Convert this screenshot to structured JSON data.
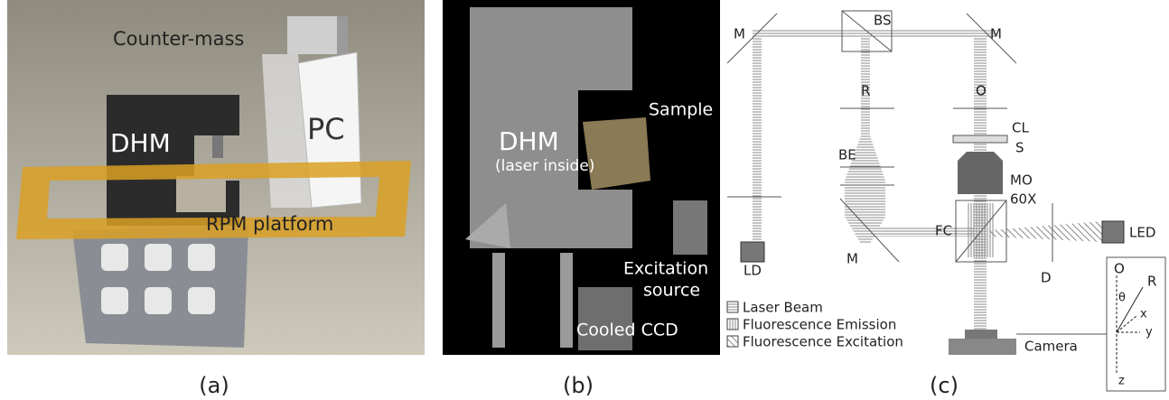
{
  "panels": [
    {
      "caption": "(a)",
      "labels": [
        "Counter-mass",
        "DHM",
        "PC",
        "RPM platform"
      ]
    },
    {
      "caption": "(b)",
      "labels": [
        "DHM",
        "(laser inside)",
        "Sample",
        "Excitation",
        "source",
        "Cooled CCD"
      ]
    },
    {
      "caption": "(c)",
      "labels": [
        "M",
        "BS",
        "M",
        "R",
        "O",
        "CL",
        "S",
        "BE",
        "MO",
        "60X",
        "FC",
        "LED",
        "M",
        "LD",
        "D",
        "Camera",
        "O",
        "R",
        "θ",
        "x",
        "y",
        "z"
      ],
      "legend": [
        "Laser Beam",
        "Fluorescence Emission",
        "Fluorescence Excitation"
      ]
    }
  ]
}
